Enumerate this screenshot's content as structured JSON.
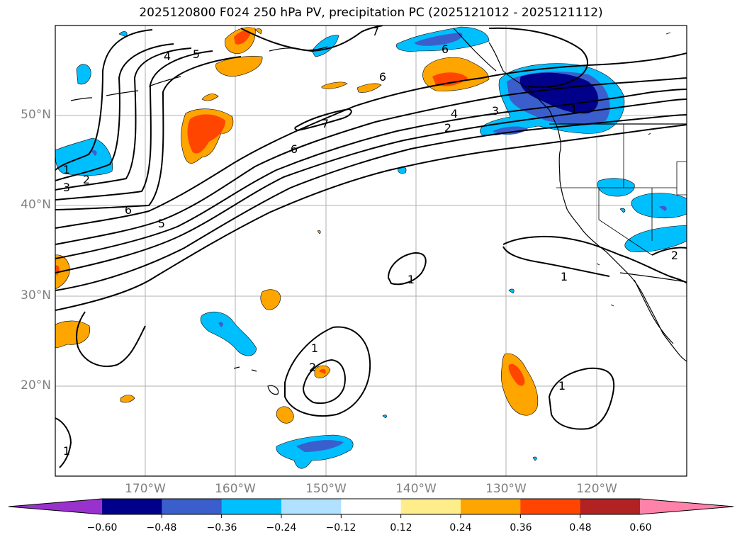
{
  "title": "2025120800 F024 250 hPa PV, precipitation PC (2025121012 - 2025121112)",
  "lat_labels": [
    "50°N",
    "40°N",
    "30°N",
    "20°N"
  ],
  "lon_labels": [
    "170°W",
    "160°W",
    "150°W",
    "140°W",
    "130°W",
    "120°W"
  ],
  "contour_labels": [
    "4",
    "5",
    "6",
    "7",
    "6",
    "4",
    "3",
    "2",
    "1",
    "1",
    "2",
    "3",
    "6",
    "5",
    "6",
    "7",
    "1",
    "1",
    "2",
    "1",
    "1",
    "2",
    "1"
  ],
  "colorbar": {
    "ticks": [
      "−0.60",
      "−0.48",
      "−0.36",
      "−0.24",
      "−0.12",
      "0.12",
      "0.24",
      "0.36",
      "0.48",
      "0.60"
    ],
    "colors": [
      "#9932cc",
      "#00008b",
      "#3a5fcd",
      "#00bfff",
      "#b0e2ff",
      "#ffffff",
      "#ffec8b",
      "#ffa500",
      "#ff4500",
      "#b22222",
      "#ff82ab"
    ]
  },
  "palette": {
    "orange": "#ffa500",
    "orange_red": "#ff4500",
    "light_blue": "#00bfff",
    "mid_blue": "#3a5fcd",
    "navy": "#00008b"
  }
}
